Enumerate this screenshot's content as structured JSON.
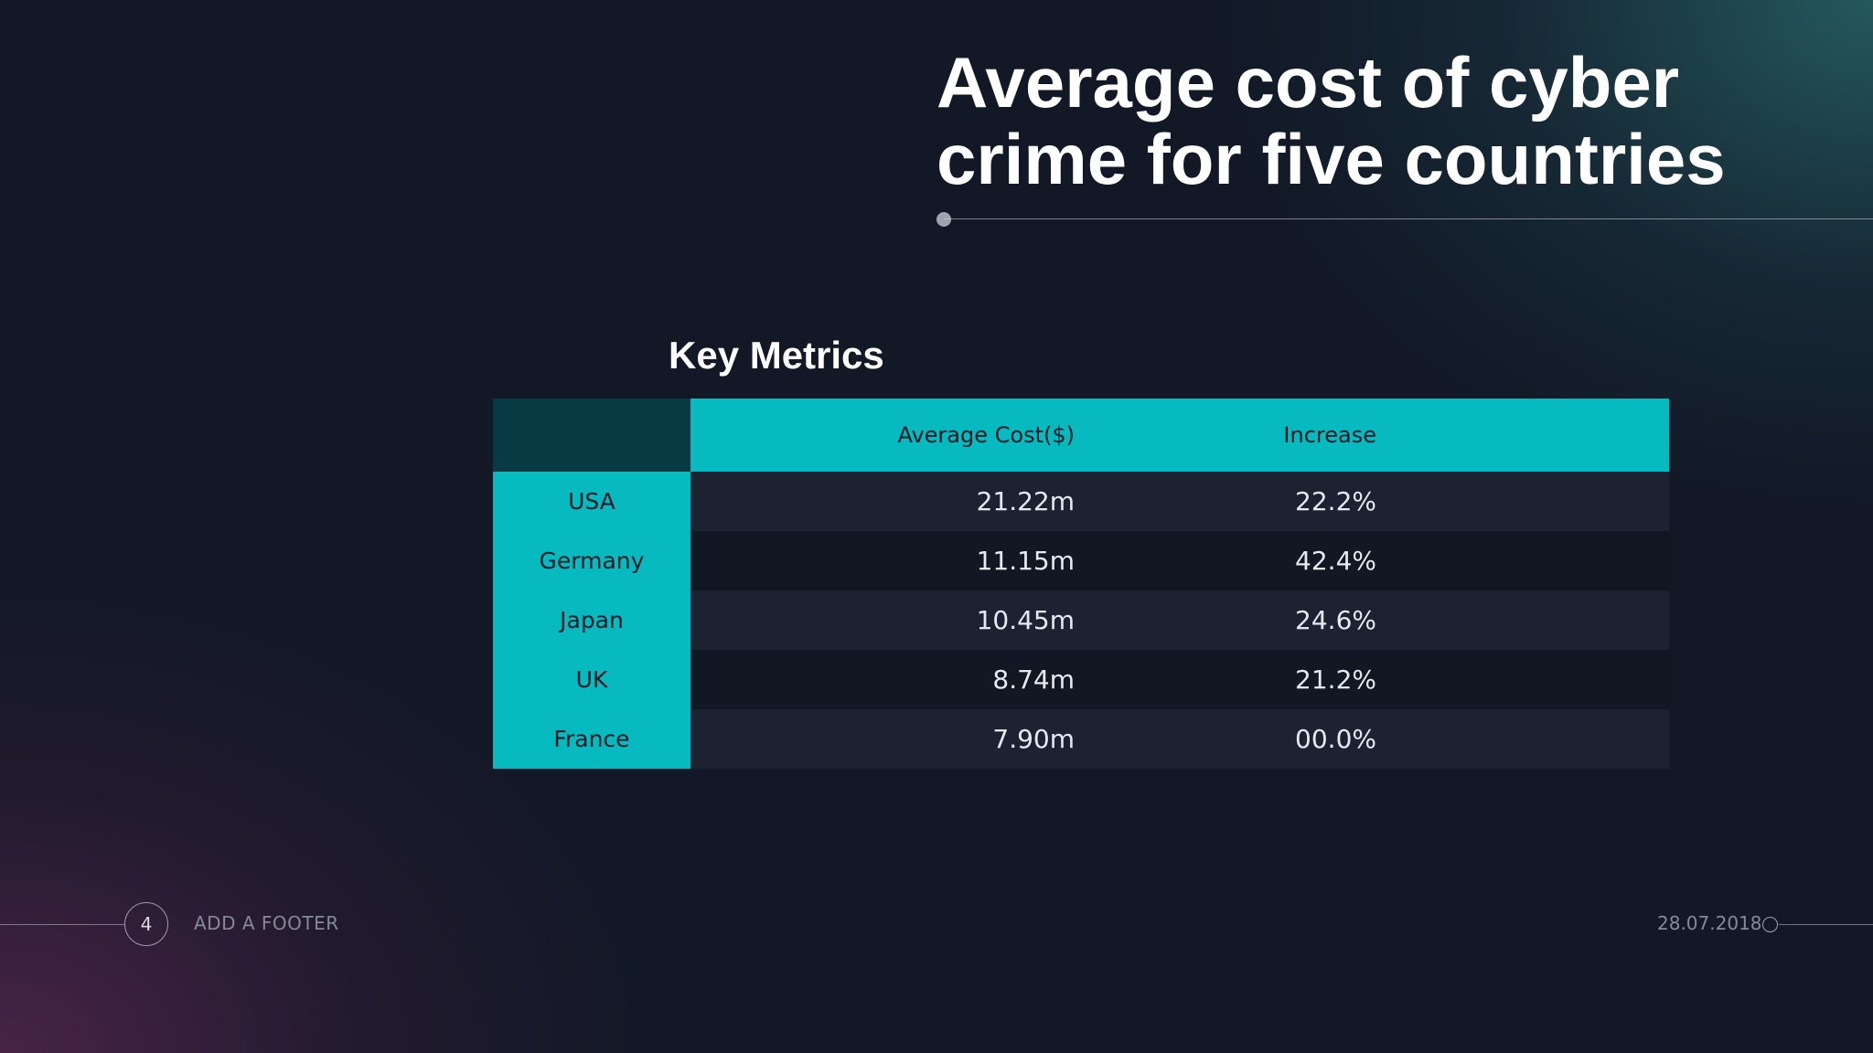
{
  "slide": {
    "title": "Average cost of cyber crime for five countries"
  },
  "table": {
    "heading": "Key Metrics",
    "columns": [
      "",
      "Average Cost($)",
      "Increase"
    ],
    "rows": [
      {
        "country": "USA",
        "average_cost": "21.22m",
        "increase": "22.2%"
      },
      {
        "country": "Germany",
        "average_cost": "11.15m",
        "increase": "42.4%"
      },
      {
        "country": "Japan",
        "average_cost": "10.45m",
        "increase": "24.6%"
      },
      {
        "country": "UK",
        "average_cost": "8.74m",
        "increase": "21.2%"
      },
      {
        "country": "France",
        "average_cost": "7.90m",
        "increase": "00.0%"
      }
    ]
  },
  "footer": {
    "page_number": "4",
    "text": "ADD A FOOTER",
    "date": "28.07.2018"
  },
  "colors": {
    "accent_teal": "#06babf",
    "corner_teal": "#073a42",
    "background": "#121826"
  }
}
